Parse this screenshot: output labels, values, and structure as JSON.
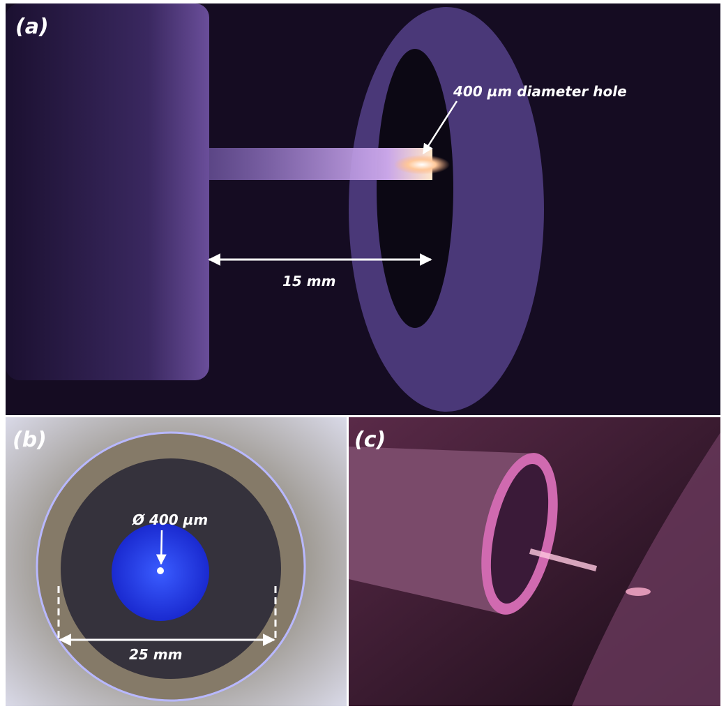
{
  "panels": [
    {
      "label": "(a)",
      "annotations": [
        "400 µm diameter hole",
        "15 mm"
      ]
    },
    {
      "label": "(b)",
      "annotations": [
        "Ø 400 µm",
        "25 mm"
      ]
    },
    {
      "label": "(c)",
      "annotations": []
    }
  ]
}
